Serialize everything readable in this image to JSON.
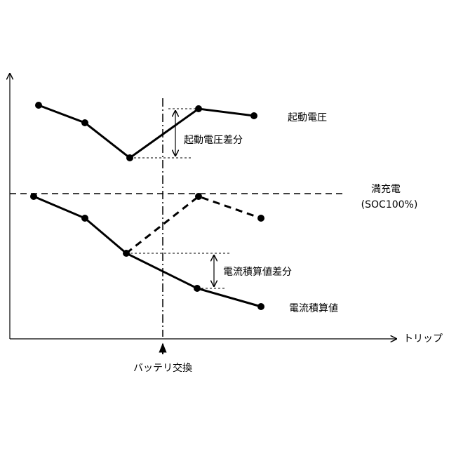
{
  "labels": {
    "voltage": "起動電圧",
    "voltage_diff": "起動電圧差分",
    "full_charge": "満充電",
    "soc": "(SOC100%)",
    "current_diff": "電流積算値差分",
    "current": "電流積算値",
    "x_axis": "トリップ",
    "battery_swap": "バッテリ交換"
  }
}
